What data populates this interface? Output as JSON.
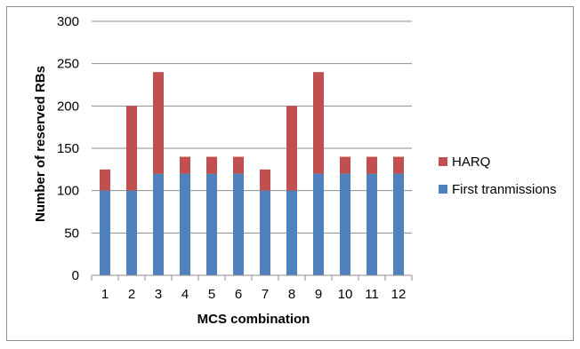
{
  "chart_data": {
    "type": "bar",
    "stacked": true,
    "title": "",
    "xlabel": "MCS combination",
    "ylabel": "Number of reserved RBs",
    "categories": [
      "1",
      "2",
      "3",
      "4",
      "5",
      "6",
      "7",
      "8",
      "9",
      "10",
      "11",
      "12"
    ],
    "ylim": [
      0,
      300
    ],
    "yticks": [
      0,
      50,
      100,
      150,
      200,
      250,
      300
    ],
    "grid": true,
    "legend_position": "right",
    "legend_order": [
      "HARQ",
      "First tranmissions"
    ],
    "series": [
      {
        "name": "First tranmissions",
        "color": "#4f81bd",
        "values": [
          100,
          100,
          120,
          120,
          120,
          120,
          100,
          100,
          120,
          120,
          120,
          120
        ]
      },
      {
        "name": "HARQ",
        "color": "#c0504d",
        "values": [
          25,
          100,
          120,
          20,
          20,
          20,
          25,
          100,
          120,
          20,
          20,
          20
        ]
      }
    ]
  }
}
